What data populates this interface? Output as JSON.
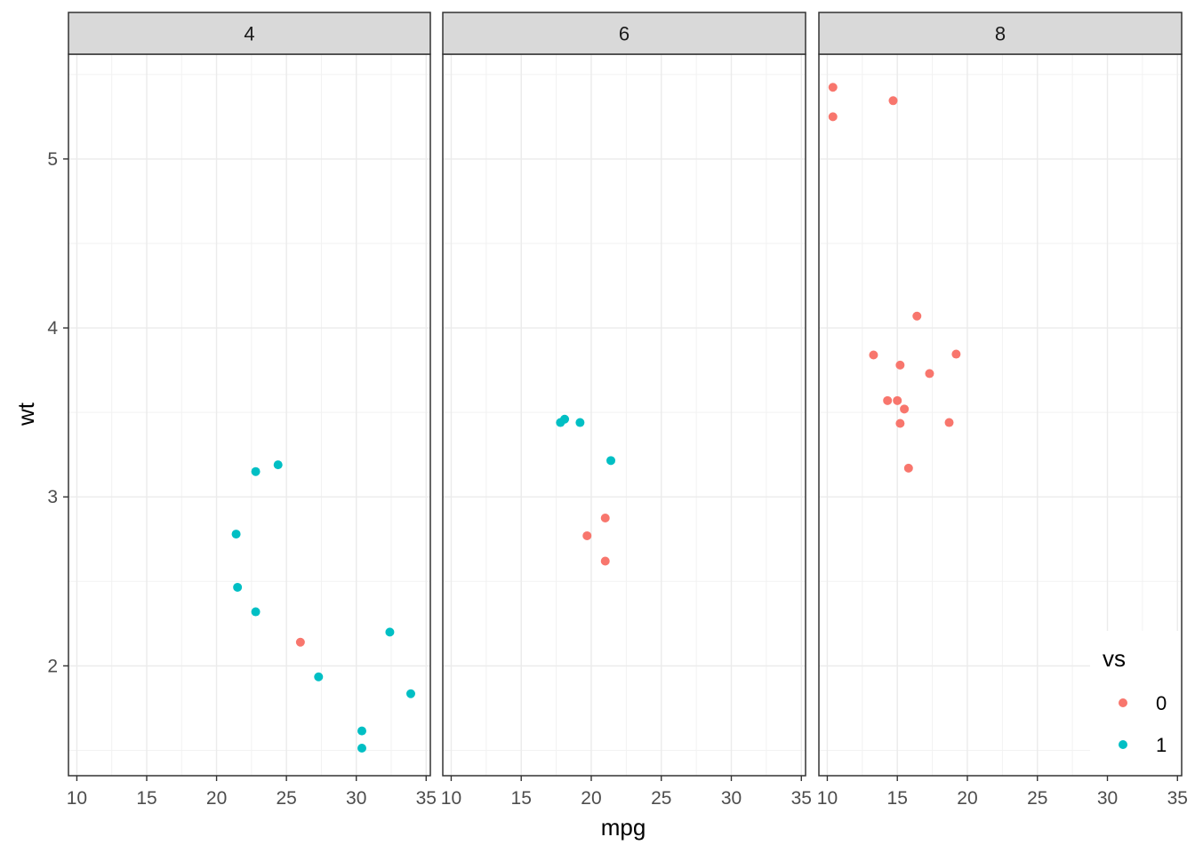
{
  "chart_data": {
    "type": "scatter",
    "xlabel": "mpg",
    "ylabel": "wt",
    "xlim": [
      9.4,
      35.3
    ],
    "ylim": [
      1.35,
      5.62
    ],
    "x_ticks": [
      10,
      15,
      20,
      25,
      30,
      35
    ],
    "y_ticks": [
      2,
      3,
      4,
      5
    ],
    "grid": true,
    "facet_variable": "cyl",
    "legend": {
      "title": "vs",
      "position": "bottom-right",
      "entries": [
        {
          "label": "0",
          "color": "#F8766D"
        },
        {
          "label": "1",
          "color": "#00BFC4"
        }
      ]
    },
    "panels": [
      {
        "label": "4",
        "points": [
          {
            "x": 22.8,
            "y": 2.32,
            "vs": "1"
          },
          {
            "x": 24.4,
            "y": 3.19,
            "vs": "1"
          },
          {
            "x": 22.8,
            "y": 3.15,
            "vs": "1"
          },
          {
            "x": 32.4,
            "y": 2.2,
            "vs": "1"
          },
          {
            "x": 30.4,
            "y": 1.615,
            "vs": "1"
          },
          {
            "x": 33.9,
            "y": 1.835,
            "vs": "1"
          },
          {
            "x": 21.5,
            "y": 2.465,
            "vs": "1"
          },
          {
            "x": 27.3,
            "y": 1.935,
            "vs": "1"
          },
          {
            "x": 26.0,
            "y": 2.14,
            "vs": "0"
          },
          {
            "x": 30.4,
            "y": 1.513,
            "vs": "1"
          },
          {
            "x": 21.4,
            "y": 2.78,
            "vs": "1"
          }
        ]
      },
      {
        "label": "6",
        "points": [
          {
            "x": 21.0,
            "y": 2.62,
            "vs": "0"
          },
          {
            "x": 21.0,
            "y": 2.875,
            "vs": "0"
          },
          {
            "x": 21.4,
            "y": 3.215,
            "vs": "1"
          },
          {
            "x": 18.1,
            "y": 3.46,
            "vs": "1"
          },
          {
            "x": 19.2,
            "y": 3.44,
            "vs": "1"
          },
          {
            "x": 17.8,
            "y": 3.44,
            "vs": "1"
          },
          {
            "x": 19.7,
            "y": 2.77,
            "vs": "0"
          }
        ]
      },
      {
        "label": "8",
        "points": [
          {
            "x": 18.7,
            "y": 3.44,
            "vs": "0"
          },
          {
            "x": 14.3,
            "y": 3.57,
            "vs": "0"
          },
          {
            "x": 16.4,
            "y": 4.07,
            "vs": "0"
          },
          {
            "x": 17.3,
            "y": 3.73,
            "vs": "0"
          },
          {
            "x": 15.2,
            "y": 3.78,
            "vs": "0"
          },
          {
            "x": 10.4,
            "y": 5.25,
            "vs": "0"
          },
          {
            "x": 10.4,
            "y": 5.424,
            "vs": "0"
          },
          {
            "x": 14.7,
            "y": 5.345,
            "vs": "0"
          },
          {
            "x": 15.5,
            "y": 3.52,
            "vs": "0"
          },
          {
            "x": 15.2,
            "y": 3.435,
            "vs": "0"
          },
          {
            "x": 13.3,
            "y": 3.84,
            "vs": "0"
          },
          {
            "x": 19.2,
            "y": 3.845,
            "vs": "0"
          },
          {
            "x": 15.8,
            "y": 3.17,
            "vs": "0"
          },
          {
            "x": 15.0,
            "y": 3.57,
            "vs": "0"
          }
        ]
      }
    ]
  }
}
